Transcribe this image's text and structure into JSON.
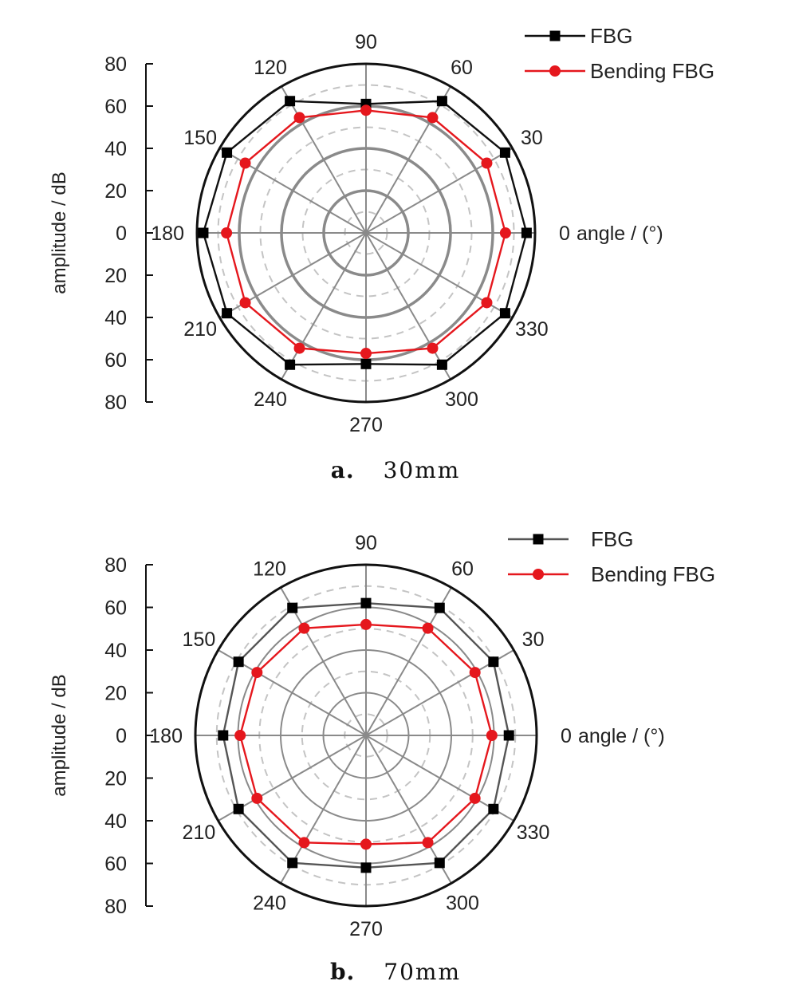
{
  "chart_data": [
    {
      "type": "polar",
      "angular_label": "angle / (°)",
      "radial_label": "amplitude / dB",
      "radial_ticks": [
        "80",
        "60",
        "40",
        "20",
        "0",
        "20",
        "40",
        "60",
        "80"
      ],
      "rlim": [
        0,
        80
      ],
      "angle_ticks": [
        0,
        30,
        60,
        90,
        120,
        150,
        180,
        210,
        240,
        270,
        300,
        330
      ],
      "grid": true,
      "legend_position": "top-right",
      "caption": {
        "label": "a.",
        "value": "30mm"
      },
      "series": [
        {
          "name": "FBG",
          "color": "#000000",
          "marker": "square",
          "angles": [
            0,
            30,
            60,
            90,
            120,
            150,
            180,
            210,
            240,
            270,
            300,
            330
          ],
          "values": [
            76,
            76,
            72,
            61,
            72,
            76,
            77,
            76,
            72,
            62,
            72,
            76
          ]
        },
        {
          "name": "Bending FBG",
          "color": "#e5171d",
          "marker": "circle",
          "angles": [
            0,
            30,
            60,
            90,
            120,
            150,
            180,
            210,
            240,
            270,
            300,
            330
          ],
          "values": [
            66,
            66,
            63,
            58,
            63,
            66,
            66,
            66,
            63,
            57,
            63,
            66
          ]
        }
      ]
    },
    {
      "type": "polar",
      "angular_label": "angle / (°)",
      "radial_label": "amplitude / dB",
      "radial_ticks": [
        "80",
        "60",
        "40",
        "20",
        "0",
        "20",
        "40",
        "60",
        "80"
      ],
      "rlim": [
        0,
        80
      ],
      "angle_ticks": [
        0,
        30,
        60,
        90,
        120,
        150,
        180,
        210,
        240,
        270,
        300,
        330
      ],
      "grid": true,
      "legend_position": "top-right",
      "caption": {
        "label": "b.",
        "value": "70mm"
      },
      "series": [
        {
          "name": "FBG",
          "color": "#000000",
          "marker": "square",
          "angles": [
            0,
            30,
            60,
            90,
            120,
            150,
            180,
            210,
            240,
            270,
            300,
            330
          ],
          "values": [
            67,
            69,
            69,
            62,
            69,
            69,
            67,
            69,
            69,
            62,
            69,
            69
          ]
        },
        {
          "name": "Bending FBG",
          "color": "#e5171d",
          "marker": "circle",
          "angles": [
            0,
            30,
            60,
            90,
            120,
            150,
            180,
            210,
            240,
            270,
            300,
            330
          ],
          "values": [
            59,
            59,
            58,
            52,
            58,
            59,
            59,
            59,
            58,
            51,
            58,
            59
          ]
        }
      ]
    }
  ]
}
